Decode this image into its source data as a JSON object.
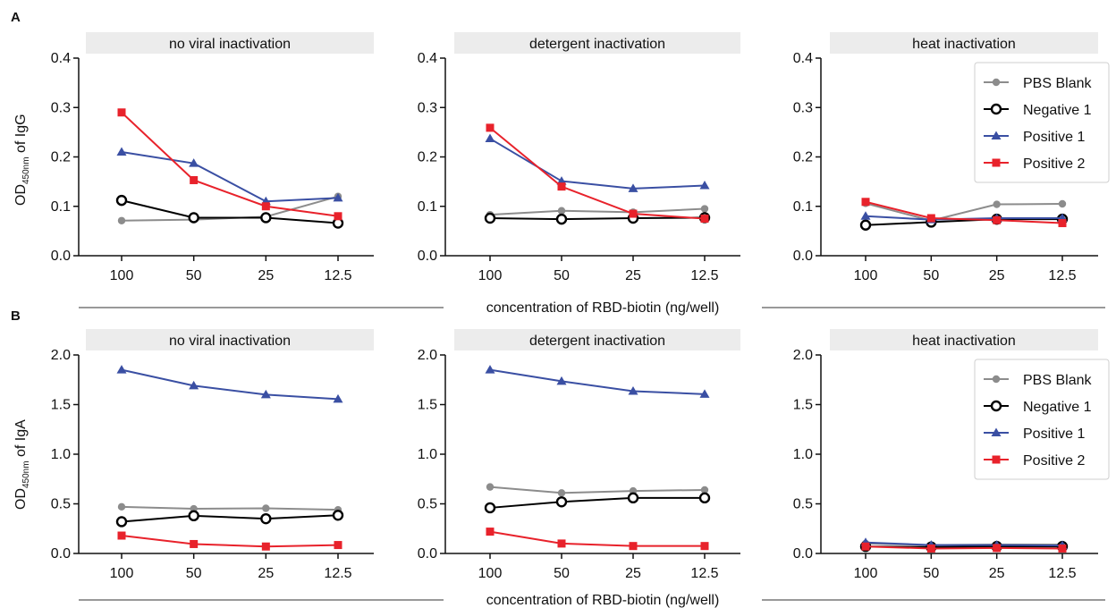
{
  "panels": [
    {
      "letter": "A",
      "ylabel_main": "OD",
      "ylabel_sub": "450nm",
      "ylabel_tail": " of IgG",
      "xlabel": "concentration of RBD-biotin (ng/well)"
    },
    {
      "letter": "B",
      "ylabel_main": "OD",
      "ylabel_sub": "450nm",
      "ylabel_tail": " of IgA",
      "xlabel": "concentration of RBD-biotin (ng/well)"
    }
  ],
  "legend": {
    "entries": [
      "PBS Blank",
      "Negative 1",
      "Positive 1",
      "Positive 2"
    ],
    "placement": "top-right of heat inactivation subplots"
  },
  "series_styles": [
    {
      "name": "PBS Blank",
      "color": "#8c8c8c",
      "marker": "circle-filled"
    },
    {
      "name": "Negative 1",
      "color": "#000000",
      "marker": "circle-open"
    },
    {
      "name": "Positive 1",
      "color": "#3a4fa3",
      "marker": "triangle"
    },
    {
      "name": "Positive 2",
      "color": "#e8222b",
      "marker": "square"
    }
  ],
  "strip_color": "#ececec",
  "chart_data": [
    {
      "type": "line",
      "row": 0,
      "col": 0,
      "title": "no viral inactivation",
      "categories": [
        "100",
        "50",
        "25",
        "12.5"
      ],
      "ylim": [
        0,
        0.4
      ],
      "yticks": [
        "0.0",
        "0.1",
        "0.2",
        "0.3",
        "0.4"
      ],
      "ytick_values": [
        0,
        0.1,
        0.2,
        0.3,
        0.4
      ],
      "series": [
        {
          "name": "PBS Blank",
          "values": [
            0.071,
            0.073,
            0.079,
            0.12
          ]
        },
        {
          "name": "Negative 1",
          "values": [
            0.112,
            0.077,
            0.077,
            0.066
          ]
        },
        {
          "name": "Positive 1",
          "values": [
            0.21,
            0.187,
            0.11,
            0.117
          ]
        },
        {
          "name": "Positive 2",
          "values": [
            0.29,
            0.153,
            0.1,
            0.08
          ]
        }
      ]
    },
    {
      "type": "line",
      "row": 0,
      "col": 1,
      "title": "detergent inactivation",
      "categories": [
        "100",
        "50",
        "25",
        "12.5"
      ],
      "ylim": [
        0,
        0.4
      ],
      "yticks": [
        "0.0",
        "0.1",
        "0.2",
        "0.3",
        "0.4"
      ],
      "ytick_values": [
        0,
        0.1,
        0.2,
        0.3,
        0.4
      ],
      "series": [
        {
          "name": "PBS Blank",
          "values": [
            0.083,
            0.091,
            0.088,
            0.095
          ]
        },
        {
          "name": "Negative 1",
          "values": [
            0.076,
            0.074,
            0.076,
            0.077
          ]
        },
        {
          "name": "Positive 1",
          "values": [
            0.237,
            0.151,
            0.136,
            0.142
          ]
        },
        {
          "name": "Positive 2",
          "values": [
            0.259,
            0.14,
            0.085,
            0.075
          ]
        }
      ]
    },
    {
      "type": "line",
      "row": 0,
      "col": 2,
      "title": "heat inactivation",
      "categories": [
        "100",
        "50",
        "25",
        "12.5"
      ],
      "ylim": [
        0,
        0.4
      ],
      "yticks": [
        "0.0",
        "0.1",
        "0.2",
        "0.3",
        "0.4"
      ],
      "ytick_values": [
        0,
        0.1,
        0.2,
        0.3,
        0.4
      ],
      "series": [
        {
          "name": "PBS Blank",
          "values": [
            0.106,
            0.071,
            0.104,
            0.105
          ]
        },
        {
          "name": "Negative 1",
          "values": [
            0.062,
            0.068,
            0.074,
            0.074
          ]
        },
        {
          "name": "Positive 1",
          "values": [
            0.08,
            0.073,
            0.076,
            0.076
          ]
        },
        {
          "name": "Positive 2",
          "values": [
            0.109,
            0.076,
            0.072,
            0.066
          ]
        }
      ]
    },
    {
      "type": "line",
      "row": 1,
      "col": 0,
      "title": "no viral inactivation",
      "categories": [
        "100",
        "50",
        "25",
        "12.5"
      ],
      "ylim": [
        0,
        2.0
      ],
      "yticks": [
        "0.0",
        "0.5",
        "1.0",
        "1.5",
        "2.0"
      ],
      "ytick_values": [
        0,
        0.5,
        1.0,
        1.5,
        2.0
      ],
      "series": [
        {
          "name": "PBS Blank",
          "values": [
            0.47,
            0.45,
            0.455,
            0.44
          ]
        },
        {
          "name": "Negative 1",
          "values": [
            0.32,
            0.38,
            0.35,
            0.385
          ]
        },
        {
          "name": "Positive 1",
          "values": [
            1.85,
            1.69,
            1.6,
            1.555
          ]
        },
        {
          "name": "Positive 2",
          "values": [
            0.18,
            0.095,
            0.07,
            0.085
          ]
        }
      ]
    },
    {
      "type": "line",
      "row": 1,
      "col": 1,
      "title": "detergent inactivation",
      "categories": [
        "100",
        "50",
        "25",
        "12.5"
      ],
      "ylim": [
        0,
        2.0
      ],
      "yticks": [
        "0.0",
        "0.5",
        "1.0",
        "1.5",
        "2.0"
      ],
      "ytick_values": [
        0,
        0.5,
        1.0,
        1.5,
        2.0
      ],
      "series": [
        {
          "name": "PBS Blank",
          "values": [
            0.67,
            0.61,
            0.63,
            0.64
          ]
        },
        {
          "name": "Negative 1",
          "values": [
            0.46,
            0.52,
            0.56,
            0.56
          ]
        },
        {
          "name": "Positive 1",
          "values": [
            1.85,
            1.735,
            1.635,
            1.605
          ]
        },
        {
          "name": "Positive 2",
          "values": [
            0.22,
            0.1,
            0.075,
            0.075
          ]
        }
      ]
    },
    {
      "type": "line",
      "row": 1,
      "col": 2,
      "title": "heat inactivation",
      "categories": [
        "100",
        "50",
        "25",
        "12.5"
      ],
      "ylim": [
        0,
        2.0
      ],
      "yticks": [
        "0.0",
        "0.5",
        "1.0",
        "1.5",
        "2.0"
      ],
      "ytick_values": [
        0,
        0.5,
        1.0,
        1.5,
        2.0
      ],
      "series": [
        {
          "name": "PBS Blank",
          "values": [
            0.1,
            0.085,
            0.09,
            0.09
          ]
        },
        {
          "name": "Negative 1",
          "values": [
            0.07,
            0.065,
            0.07,
            0.07
          ]
        },
        {
          "name": "Positive 1",
          "values": [
            0.11,
            0.085,
            0.085,
            0.08
          ]
        },
        {
          "name": "Positive 2",
          "values": [
            0.07,
            0.05,
            0.055,
            0.05
          ]
        }
      ]
    }
  ]
}
